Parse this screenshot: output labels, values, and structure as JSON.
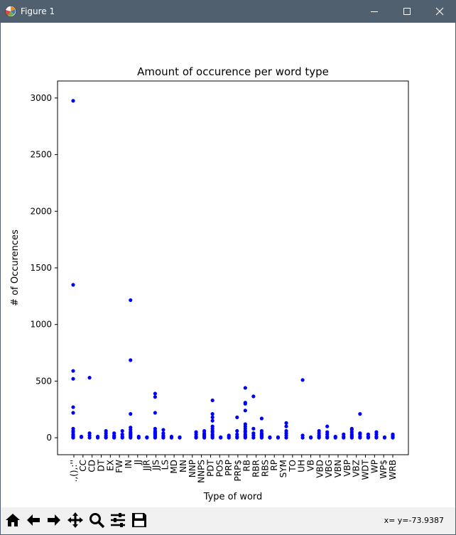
{
  "window": {
    "title": "Figure 1",
    "minimize_icon": "minimize-icon",
    "maximize_icon": "maximize-icon",
    "close_icon": "close-icon"
  },
  "toolbar": {
    "buttons": [
      "home-icon",
      "back-arrow-icon",
      "forward-arrow-icon",
      "pan-icon",
      "zoom-icon",
      "configure-subplots-icon",
      "save-icon"
    ],
    "coords": "x= y=-73.9387"
  },
  "colors": {
    "titlebar": "#51606e",
    "marker": "#0000ff",
    "toolbar": "#f0f0f0"
  },
  "chart_data": {
    "type": "scatter",
    "title": "Amount of occurence per word type",
    "xlabel": "Type of word",
    "ylabel": "# of Occurences",
    "ylim": [
      -150,
      3150
    ],
    "yticks": [
      0,
      500,
      1000,
      1500,
      2000,
      2500,
      3000
    ],
    "grid": false,
    "categories": [
      "''",
      "()",
      ",",
      ".",
      ":",
      "CC",
      "CD",
      "DT",
      "EX",
      "FW",
      "IN",
      "JJ",
      "JJR",
      "JJS",
      "LS",
      "MD",
      "NN",
      "NNP",
      "NNPS",
      "PDT",
      "POS",
      "PRP",
      "PRP$",
      "RB",
      "RBR",
      "RBS",
      "RP",
      "SYM",
      "TO",
      "UH",
      "VB",
      "VBD",
      "VBG",
      "VBN",
      "VBP",
      "VBZ",
      "WDT",
      "WP",
      "WP$",
      "WRB"
    ],
    "tick_labels": [
      ".,(),:''",
      "CC",
      "CD",
      "DT",
      "EX",
      "FW",
      "IN",
      "JJ",
      "JJR",
      "JJS",
      "LS",
      "MD",
      "NN",
      "NNP",
      "NNPS",
      "PDT",
      "POS",
      "PRP",
      "PRP$",
      "RB",
      "RBR",
      "RBS",
      "RP",
      "SYM",
      "TO",
      "UH",
      "VB",
      "VBD",
      "VBG",
      "VBN",
      "VBP",
      "VBZ",
      "WDT",
      "WP",
      "WP$",
      "WRB"
    ],
    "series": [
      {
        "values": {
          "''": [
            0,
            5,
            10,
            20,
            30,
            50,
            60,
            80,
            220,
            270,
            520,
            590,
            1350,
            2975
          ],
          "()": [
            5,
            10
          ],
          ",": [
            0,
            20,
            40,
            530
          ],
          ".": [
            0,
            10
          ],
          ":": [
            0,
            5,
            20,
            40,
            60
          ],
          "CC": [
            0,
            10,
            20,
            40
          ],
          "CD": [
            0,
            10,
            30,
            60
          ],
          "DT": [
            0,
            10,
            20,
            30,
            40,
            50,
            70,
            90,
            210,
            685,
            1215
          ],
          "EX": [
            0,
            10
          ],
          "FW": [
            0,
            5
          ],
          "IN": [
            0,
            10,
            20,
            30,
            40,
            50,
            60,
            80,
            220,
            360,
            390
          ],
          "JJ": [
            0,
            10,
            20,
            40,
            70
          ],
          "JJR": [
            0,
            10
          ],
          "JJS": [
            0,
            5
          ],
          "LS": [],
          "MD": [
            0,
            10,
            30,
            50
          ],
          "NN": [
            0,
            10,
            20,
            30,
            40,
            60
          ],
          "NNP": [
            0,
            10,
            20,
            30,
            50,
            60,
            80,
            100,
            150,
            180,
            210,
            330
          ],
          "NNPS": [
            0,
            5
          ],
          "PDT": [
            0,
            10,
            20
          ],
          "POS": [
            0,
            10,
            30,
            60,
            180
          ],
          "PRP": [
            0,
            10,
            20,
            30,
            50,
            60,
            80,
            100,
            120,
            240,
            300,
            310,
            440
          ],
          "PRP$": [
            0,
            20,
            40,
            80,
            365
          ],
          "RB": [
            0,
            10,
            20,
            30,
            40,
            60,
            170
          ],
          "RBR": [
            0,
            5
          ],
          "RBS": [
            0,
            5
          ],
          "RP": [
            0,
            20,
            40,
            60,
            100,
            130
          ],
          "SYM": [],
          "TO": [
            0,
            20,
            510
          ],
          "UH": [
            0,
            5
          ],
          "VB": [
            0,
            10,
            20,
            40,
            60
          ],
          "VBD": [
            0,
            10,
            30,
            50,
            100
          ],
          "VBG": [
            0,
            10
          ],
          "VBN": [
            0,
            10,
            30
          ],
          "VBP": [
            0,
            10,
            20,
            30,
            50,
            70,
            80
          ],
          "VBZ": [
            0,
            10,
            30,
            40,
            210
          ],
          "WDT": [
            0,
            10,
            30
          ],
          "WP": [
            0,
            10,
            30,
            50
          ],
          "WP$": [
            0,
            5
          ],
          "WRB": [
            0,
            10,
            20,
            30
          ]
        }
      }
    ]
  }
}
